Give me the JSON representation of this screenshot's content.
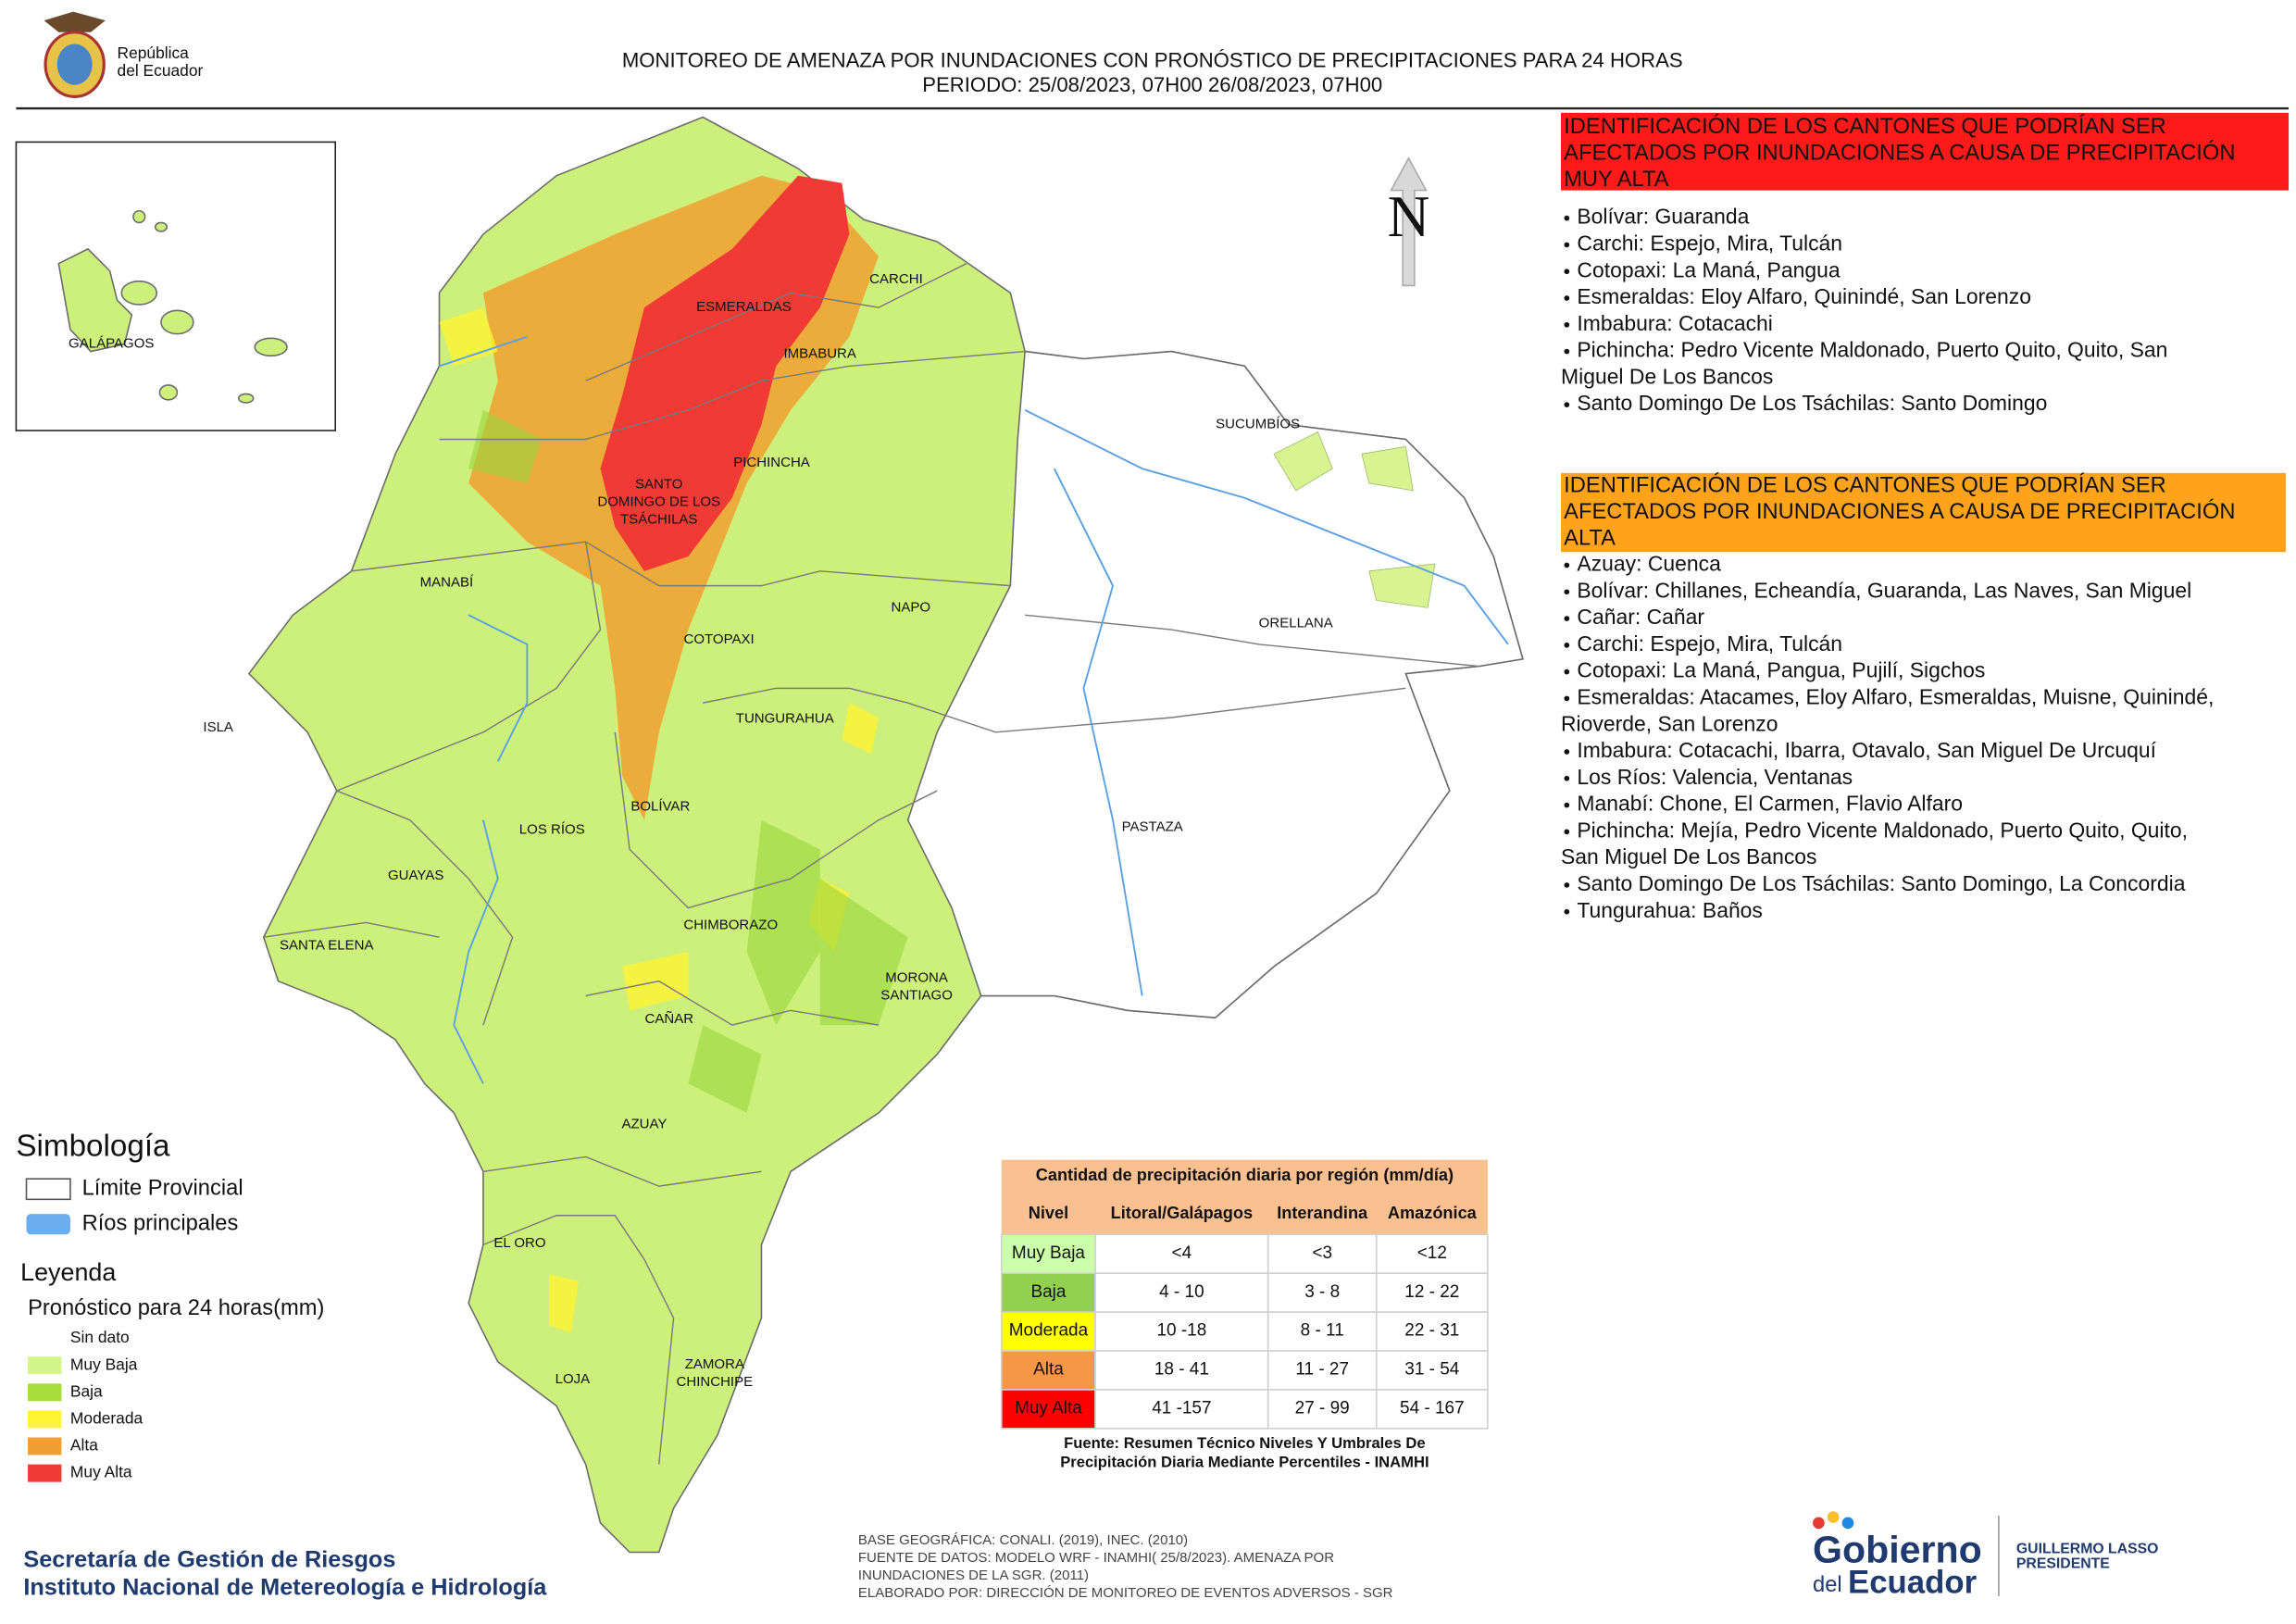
{
  "header": {
    "logo": [
      "República",
      "del Ecuador"
    ],
    "title": [
      "MONITOREO DE AMENAZA POR INUNDACIONES  CON PRONÓSTICO DE  PRECIPITACIONES PARA 24 HORAS",
      "PERIODO: 25/08/2023, 07H00 26/08/2023, 07H00"
    ]
  },
  "map": {
    "north": "N",
    "inset_label": "GALÁPAGOS",
    "labels": [
      {
        "lines": [
          "CARCHI"
        ]
      },
      {
        "lines": [
          "ESMERALDAS"
        ]
      },
      {
        "lines": [
          "IMBABURA"
        ]
      },
      {
        "lines": [
          "SUCUMBÍOS"
        ]
      },
      {
        "lines": [
          "PICHINCHA"
        ]
      },
      {
        "lines": [
          "SANTO",
          "DOMINGO DE LOS",
          "TSÁCHILAS"
        ]
      },
      {
        "lines": [
          "MANABÍ"
        ]
      },
      {
        "lines": [
          "NAPO"
        ]
      },
      {
        "lines": [
          "ORELLANA"
        ]
      },
      {
        "lines": [
          "COTOPAXI"
        ]
      },
      {
        "lines": [
          "ISLA"
        ]
      },
      {
        "lines": [
          "TUNGURAHUA"
        ]
      },
      {
        "lines": [
          "BOLÍVAR"
        ]
      },
      {
        "lines": [
          "PASTAZA"
        ]
      },
      {
        "lines": [
          "LOS RÍOS"
        ]
      },
      {
        "lines": [
          "GUAYAS"
        ]
      },
      {
        "lines": [
          "CHIMBORAZO"
        ]
      },
      {
        "lines": [
          "SANTA ELENA"
        ]
      },
      {
        "lines": [
          "MORONA",
          "SANTIAGO"
        ]
      },
      {
        "lines": [
          "CAÑAR"
        ]
      },
      {
        "lines": [
          "AZUAY"
        ]
      },
      {
        "lines": [
          "EL ORO"
        ]
      },
      {
        "lines": [
          "ZAMORA",
          "CHINCHIPE"
        ]
      },
      {
        "lines": [
          "LOJA"
        ]
      }
    ]
  },
  "panels": [
    {
      "title": [
        "IDENTIFICACIÓN DE LOS CANTONES QUE PODRÍAN SER",
        "AFECTADOS POR INUNDACIONES  A CAUSA DE PRECIPITACIÓN",
        "MUY ALTA"
      ],
      "items": [
        [
          "Bolívar: Guaranda"
        ],
        [
          "Carchi: Espejo, Mira, Tulcán"
        ],
        [
          "Cotopaxi: La Maná, Pangua"
        ],
        [
          "Esmeraldas: Eloy Alfaro, Quinindé, San Lorenzo"
        ],
        [
          "Imbabura: Cotacachi"
        ],
        [
          "Pichincha: Pedro Vicente Maldonado, Puerto Quito, Quito, San",
          "Miguel De Los Bancos"
        ],
        [
          "Santo Domingo De Los Tsáchilas: Santo Domingo"
        ]
      ]
    },
    {
      "title": [
        "IDENTIFICACIÓN DE LOS CANTONES QUE  PODRÍAN SER",
        "AFECTADOS POR INUNDACIONES  A CAUSA DE PRECIPITACIÓN",
        "ALTA"
      ],
      "items": [
        [
          "Azuay: Cuenca"
        ],
        [
          "Bolívar: Chillanes, Echeandía, Guaranda, Las Naves, San Miguel"
        ],
        [
          "Cañar: Cañar"
        ],
        [
          "Carchi: Espejo, Mira, Tulcán"
        ],
        [
          "Cotopaxi: La Maná, Pangua, Pujilí, Sigchos"
        ],
        [
          "Esmeraldas: Atacames, Eloy Alfaro, Esmeraldas, Muisne, Quinindé,",
          "Rioverde, San Lorenzo"
        ],
        [
          "Imbabura: Cotacachi, Ibarra, Otavalo, San Miguel De Urcuquí"
        ],
        [
          "Los Ríos: Valencia, Ventanas"
        ],
        [
          "Manabí: Chone, El Carmen, Flavio Alfaro"
        ],
        [
          "Pichincha: Mejía, Pedro Vicente Maldonado, Puerto Quito, Quito,",
          "San Miguel De Los Bancos"
        ],
        [
          "Santo Domingo De Los Tsáchilas: Santo Domingo, La Concordia"
        ],
        [
          "Tungurahua: Baños"
        ]
      ]
    }
  ],
  "symbology": {
    "title": "Simbología",
    "items": [
      "Límite Provincial",
      "Ríos principales"
    ]
  },
  "legend": {
    "title": "Leyenda",
    "subtitle": "Pronóstico para 24 horas(mm)",
    "items": [
      "Sin dato",
      "Muy Baja",
      "Baja",
      "Moderada",
      "Alta",
      "Muy Alta"
    ]
  },
  "table": {
    "title": "Cantidad de precipitación diaria por región (mm/día)",
    "header": [
      "Nivel",
      "Litoral/Galápagos",
      "Interandina",
      "Amazónica"
    ],
    "rows": [
      [
        "Muy Baja",
        "<4",
        "<3",
        "<12"
      ],
      [
        "Baja",
        "4 - 10",
        "3 - 8",
        "12 - 22"
      ],
      [
        "Moderada",
        "10 -18",
        "8 - 11",
        "22 - 31"
      ],
      [
        "Alta",
        "18 - 41",
        "11 - 27",
        "31 - 54"
      ],
      [
        "Muy Alta",
        "41 -157",
        "27 - 99",
        "54 - 167"
      ]
    ],
    "source": [
      "Fuente: Resumen Técnico Niveles Y Umbrales De",
      "Precipitación Diaria Mediante Percentiles - INAMHI"
    ]
  },
  "footer": {
    "institutions": [
      "Secretaría de Gestión de Riesgos",
      "Instituto Nacional de Metereología e Hidrología"
    ],
    "credits": [
      "BASE GEOGRÁFICA: CONALI. (2019), INEC. (2010)",
      "FUENTE DE DATOS: MODELO WRF - INAMHI( 25/8/2023).  AMENAZA POR",
      "INUNDACIONES DE LA SGR. (2011)",
      "ELABORADO POR: DIRECCIÓN DE MONITOREO DE EVENTOS ADVERSOS - SGR"
    ],
    "gov": [
      "Gobierno",
      "del",
      "Ecuador"
    ],
    "president": [
      "GUILLERMO LASSO",
      "PRESIDENTE"
    ]
  }
}
